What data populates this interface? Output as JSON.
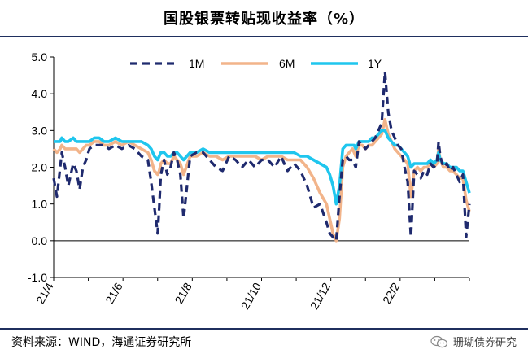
{
  "title": "国股银票转贴现收益率（%）",
  "source": "资料来源：WIND，海通证券研究所",
  "brand": "珊瑚债券研究",
  "colors": {
    "1M": "#1f2a6e",
    "6M": "#f2b48a",
    "1Y": "#1fc6ee"
  },
  "chart_data": {
    "type": "line",
    "title": "国股银票转贴现收益率（%）",
    "xlabel": "",
    "ylabel": "",
    "ylim": [
      -1.0,
      5.0
    ],
    "yticks": [
      "5.0",
      "4.0",
      "3.0",
      "2.0",
      "1.0",
      "0.0",
      "-1.0"
    ],
    "xticks": [
      "21/4",
      "21/6",
      "21/8",
      "21/10",
      "21/12",
      "22/2"
    ],
    "x": [
      0,
      2,
      4,
      5,
      7,
      9,
      12,
      14,
      16,
      18,
      20,
      22,
      25,
      28,
      31,
      34,
      38,
      42,
      46,
      50,
      54,
      58,
      60,
      62,
      64,
      65,
      66,
      68,
      70,
      72,
      74,
      76,
      78,
      80,
      84,
      88,
      92,
      96,
      100,
      104,
      108,
      112,
      116,
      120,
      124,
      128,
      132,
      136,
      140,
      144,
      148,
      152,
      156,
      160,
      164,
      168,
      170,
      172,
      174,
      176,
      178,
      180,
      182,
      184,
      185,
      186,
      188,
      190,
      192,
      194,
      196,
      198,
      200,
      202,
      204,
      206,
      208,
      210,
      212,
      214,
      216,
      218,
      220,
      222,
      224,
      226,
      228,
      230,
      232,
      234,
      236,
      237,
      238,
      240,
      242,
      244,
      246,
      248,
      250,
      252,
      254,
      256
    ],
    "series": [
      {
        "name": "1M",
        "values": [
          1.7,
          1.2,
          2.0,
          2.4,
          2.0,
          1.5,
          2.1,
          1.9,
          1.4,
          2.0,
          2.2,
          2.5,
          2.6,
          2.6,
          2.6,
          2.5,
          2.6,
          2.5,
          2.6,
          2.5,
          2.3,
          2.2,
          1.6,
          0.9,
          0.2,
          0.9,
          1.8,
          2.2,
          1.8,
          2.0,
          2.4,
          2.2,
          1.8,
          0.6,
          2.3,
          2.4,
          2.4,
          2.2,
          2.0,
          1.9,
          2.3,
          2.2,
          2.0,
          2.2,
          2.0,
          2.2,
          2.2,
          2.0,
          2.3,
          1.9,
          2.1,
          1.9,
          1.5,
          0.9,
          1.0,
          0.5,
          0.2,
          0.1,
          0.0,
          1.2,
          2.2,
          2.3,
          2.2,
          2.2,
          2.1,
          2.0,
          2.7,
          2.6,
          2.5,
          2.6,
          2.7,
          2.8,
          3.0,
          3.2,
          4.6,
          3.5,
          3.0,
          2.8,
          2.6,
          2.5,
          2.0,
          1.6,
          0.1,
          1.9,
          1.8,
          1.7,
          1.9,
          1.8,
          2.1,
          2.0,
          2.1,
          2.7,
          2.3,
          2.0,
          2.1,
          1.9,
          2.0,
          1.8,
          1.6,
          1.8,
          0.1,
          1.0
        ]
      },
      {
        "name": "6M",
        "values": [
          2.5,
          2.4,
          2.5,
          2.6,
          2.5,
          2.5,
          2.5,
          2.5,
          2.4,
          2.5,
          2.6,
          2.6,
          2.7,
          2.7,
          2.6,
          2.6,
          2.7,
          2.6,
          2.7,
          2.6,
          2.5,
          2.4,
          2.2,
          1.9,
          1.8,
          1.9,
          2.1,
          2.2,
          2.1,
          2.1,
          2.3,
          2.2,
          2.1,
          1.8,
          2.3,
          2.3,
          2.4,
          2.3,
          2.3,
          2.2,
          2.3,
          2.3,
          2.3,
          2.3,
          2.3,
          2.2,
          2.3,
          2.3,
          2.3,
          2.2,
          2.2,
          2.2,
          2.0,
          1.7,
          1.3,
          1.0,
          0.6,
          0.2,
          0.0,
          0.6,
          2.0,
          2.3,
          2.4,
          2.5,
          2.4,
          2.3,
          2.6,
          2.6,
          2.5,
          2.6,
          2.6,
          2.7,
          2.8,
          2.9,
          3.3,
          2.9,
          2.7,
          2.5,
          2.4,
          2.3,
          2.2,
          2.1,
          1.2,
          1.9,
          2.0,
          1.9,
          2.0,
          2.0,
          2.1,
          2.0,
          2.1,
          2.5,
          2.2,
          2.0,
          2.0,
          1.9,
          1.9,
          1.8,
          1.7,
          1.7,
          1.1,
          0.8
        ]
      },
      {
        "name": "1Y",
        "values": [
          2.7,
          2.7,
          2.7,
          2.8,
          2.7,
          2.7,
          2.8,
          2.7,
          2.7,
          2.7,
          2.7,
          2.7,
          2.8,
          2.8,
          2.7,
          2.7,
          2.8,
          2.7,
          2.7,
          2.7,
          2.7,
          2.6,
          2.5,
          2.3,
          2.2,
          2.3,
          2.4,
          2.4,
          2.3,
          2.3,
          2.4,
          2.4,
          2.3,
          2.2,
          2.4,
          2.4,
          2.5,
          2.4,
          2.4,
          2.4,
          2.4,
          2.4,
          2.4,
          2.4,
          2.4,
          2.4,
          2.4,
          2.4,
          2.4,
          2.4,
          2.4,
          2.3,
          2.3,
          2.2,
          2.1,
          2.0,
          1.8,
          1.5,
          1.0,
          1.5,
          2.5,
          2.6,
          2.6,
          2.6,
          2.6,
          2.5,
          2.7,
          2.7,
          2.7,
          2.7,
          2.8,
          2.8,
          2.9,
          3.0,
          3.0,
          2.8,
          2.7,
          2.6,
          2.6,
          2.5,
          2.4,
          2.3,
          2.0,
          2.1,
          2.1,
          2.1,
          2.1,
          2.1,
          2.2,
          2.1,
          2.2,
          2.4,
          2.2,
          2.1,
          2.1,
          2.0,
          2.0,
          2.0,
          1.9,
          1.9,
          1.6,
          1.3
        ]
      }
    ],
    "legend": [
      "1M",
      "6M",
      "1Y"
    ]
  }
}
